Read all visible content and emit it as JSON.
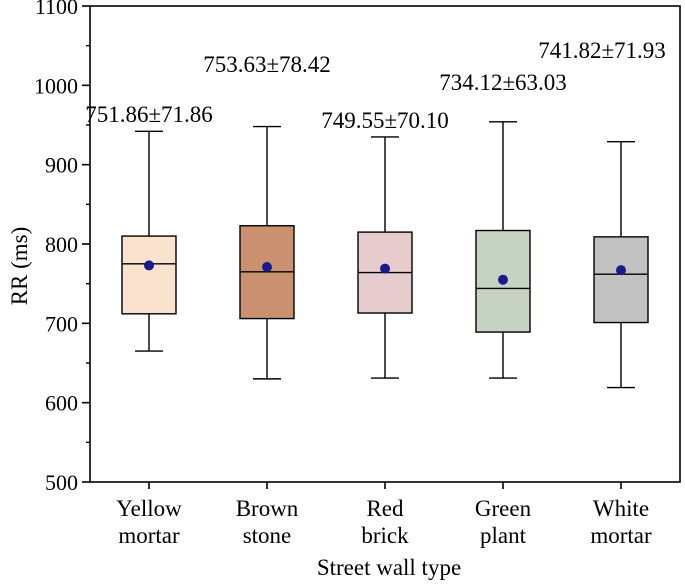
{
  "chart_data": {
    "type": "box",
    "title": "",
    "xlabel": "Street wall type",
    "ylabel": "RR (ms)",
    "ylim": [
      500,
      1100
    ],
    "yticks": [
      500,
      600,
      700,
      800,
      900,
      1000,
      1100
    ],
    "categories": [
      {
        "lines": [
          "Yellow",
          "mortar"
        ],
        "color": "#f9e3cf"
      },
      {
        "lines": [
          "Brown",
          "stone"
        ],
        "color": "#c9916f"
      },
      {
        "lines": [
          "Red",
          "brick"
        ],
        "color": "#e6cccc"
      },
      {
        "lines": [
          "Green",
          "plant"
        ],
        "color": "#c6d2c2"
      },
      {
        "lines": [
          "White",
          "mortar"
        ],
        "color": "#c2c2c2"
      }
    ],
    "boxes": [
      {
        "min": 665,
        "q1": 712,
        "median": 775,
        "q3": 810,
        "max": 942,
        "mean": 773,
        "label": "751.86±71.86"
      },
      {
        "min": 630,
        "q1": 706,
        "median": 765,
        "q3": 823,
        "max": 948,
        "mean": 771,
        "label": "753.63±78.42"
      },
      {
        "min": 631,
        "q1": 713,
        "median": 764,
        "q3": 815,
        "max": 935,
        "mean": 769,
        "label": "749.55±70.10"
      },
      {
        "min": 631,
        "q1": 689,
        "median": 744,
        "q3": 817,
        "max": 954,
        "mean": 755,
        "label": "734.12±63.03"
      },
      {
        "min": 619,
        "q1": 701,
        "median": 762,
        "q3": 809,
        "max": 929,
        "mean": 767,
        "label": "741.82±71.93"
      }
    ],
    "mean_marker_color": "#1a1a8c"
  }
}
